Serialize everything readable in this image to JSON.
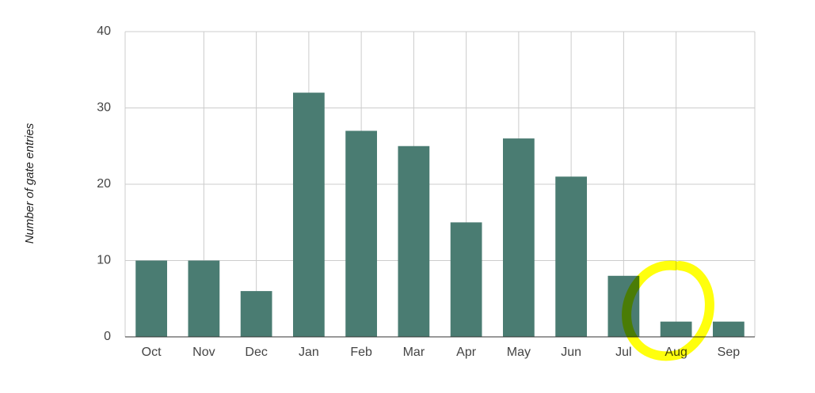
{
  "chart_data": {
    "type": "bar",
    "y_label": "Number of gate entries",
    "categories": [
      "Oct",
      "Nov",
      "Dec",
      "Jan",
      "Feb",
      "Mar",
      "Apr",
      "May",
      "Jun",
      "Jul",
      "Aug",
      "Sep"
    ],
    "values": [
      10,
      10,
      6,
      32,
      27,
      25,
      15,
      26,
      21,
      8,
      2,
      2
    ],
    "color": "#4a7c72",
    "ylim": [
      0,
      40
    ],
    "yticks": [
      0,
      10,
      20,
      30,
      40
    ],
    "grid": true
  }
}
